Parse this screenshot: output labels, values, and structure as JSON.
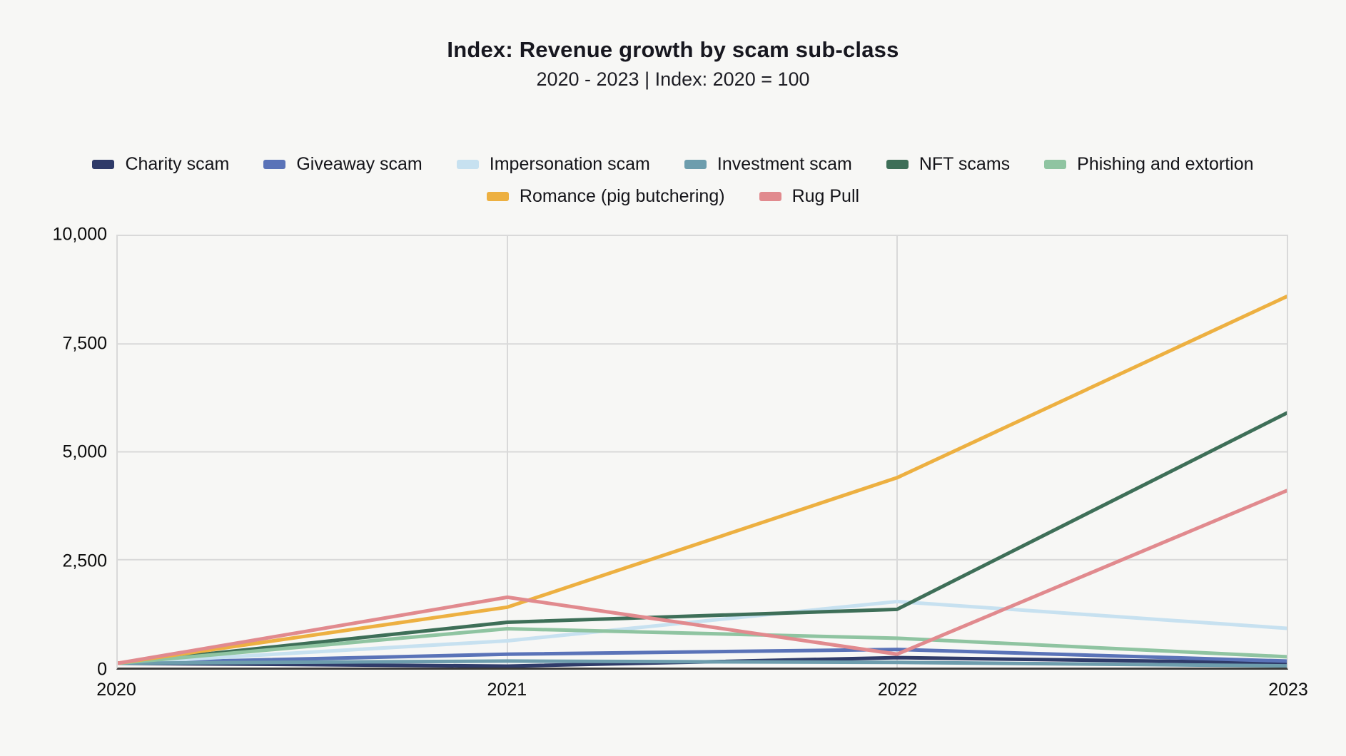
{
  "header": {
    "title": "Index: Revenue growth by scam sub-class",
    "subtitle": "2020 - 2023 | Index: 2020 = 100"
  },
  "chart_data": {
    "type": "line",
    "title": "Index: Revenue growth by scam sub-class",
    "subtitle": "2020 - 2023 | Index: 2020 = 100",
    "categories": [
      "2020",
      "2021",
      "2022",
      "2023"
    ],
    "series": [
      {
        "name": "Charity scam",
        "color": "#2f3b69",
        "values": [
          100,
          30,
          230,
          110
        ]
      },
      {
        "name": "Giveaway scam",
        "color": "#5a73b8",
        "values": [
          100,
          310,
          420,
          150
        ]
      },
      {
        "name": "Impersonation scam",
        "color": "#c7e1f0",
        "values": [
          100,
          620,
          1530,
          910
        ]
      },
      {
        "name": "Investment scam",
        "color": "#6d9dad",
        "values": [
          100,
          150,
          120,
          40
        ]
      },
      {
        "name": "NFT scams",
        "color": "#3e6f58",
        "values": [
          100,
          1050,
          1350,
          5900
        ]
      },
      {
        "name": "Phishing and extortion",
        "color": "#8fc4a1",
        "values": [
          100,
          900,
          680,
          250
        ]
      },
      {
        "name": "Romance (pig butchering)",
        "color": "#edb041",
        "values": [
          100,
          1400,
          4400,
          8600
        ]
      },
      {
        "name": "Rug Pull",
        "color": "#e18a8e",
        "values": [
          100,
          1630,
          310,
          4100
        ]
      }
    ],
    "ylim": [
      0,
      10000
    ],
    "yticks": [
      {
        "label": "10,000",
        "value": 10000
      },
      {
        "label": "7,500",
        "value": 7500
      },
      {
        "label": "5,000",
        "value": 5000
      },
      {
        "label": "2,500",
        "value": 2500
      },
      {
        "label": "0",
        "value": 0
      }
    ],
    "grid": true,
    "legend_position": "top",
    "colors": {
      "background": "#f7f7f5",
      "gridline": "#d9d9d9",
      "axis_line": "#3c3c3c",
      "text": "#141419"
    }
  }
}
